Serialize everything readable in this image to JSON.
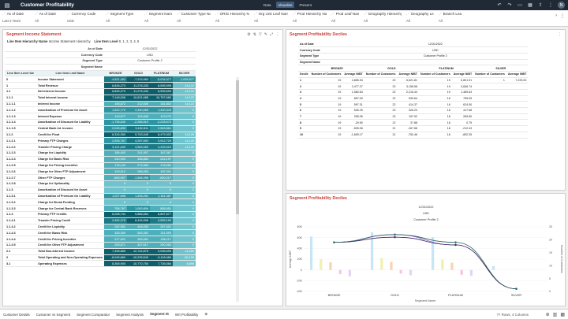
{
  "app": {
    "title": "Customer Profitability",
    "modes": [
      "Data",
      "Visualize",
      "Present"
    ],
    "active_mode": "Visualize",
    "avatar": "N"
  },
  "filters": [
    {
      "label": "As of Date",
      "value": "Last 2 Years"
    },
    {
      "label": "As of Date",
      "value": "All"
    },
    {
      "label": "Currency Code",
      "value": "USD"
    },
    {
      "label": "Segment Type",
      "value": "All"
    },
    {
      "label": "Segment Name",
      "value": "All"
    },
    {
      "label": "Customer Type Name",
      "value": "All"
    },
    {
      "label": "ORIG Hierarchy Name",
      "value": "All"
    },
    {
      "label": "Org Unit Leaf Name",
      "value": "All"
    },
    {
      "label": "Prod Hierarchy Name",
      "value": "All"
    },
    {
      "label": "Prod Leaf Name",
      "value": "All"
    },
    {
      "label": "Geography Hierarchy Name",
      "value": "All"
    },
    {
      "label": "Geography Leaf Name",
      "value": "All"
    },
    {
      "label": "Branch Lea",
      "value": "All"
    }
  ],
  "income_statement": {
    "title": "Segment Income Statement",
    "hier_label": "Line Item Hierarchy Name",
    "hier_value": "Income Statement Hierarchy",
    "level_label": "Line Item Level",
    "level_value": "0, 1, 2, 3, 4, 5",
    "header_labels": [
      "As of Date",
      "Currency Code",
      "Segment Type",
      "Segment Name"
    ],
    "header_values": [
      "12/31/2022",
      "USD",
      "Customer Profile 2",
      ""
    ],
    "col_id": "Line Item Level Ide",
    "col_name": "Line Item Leaf Name",
    "col_segments": [
      "BRONZE",
      "GOLD",
      "PLATINUM",
      "SILVER"
    ],
    "rows": [
      {
        "id": "0",
        "name": "Income Statement",
        "v": [
          "-4,521,452",
          "-7,215,963",
          "-5,034,577",
          "-1,039,577"
        ]
      },
      {
        "id": "1",
        "name": "Total Revenue",
        "v": [
          "6,826,273",
          "11,276,333",
          "8,595,599",
          "14,122"
        ]
      },
      {
        "id": "1.1",
        "name": "Net Interest Income",
        "v": [
          "6,826,273",
          "11,276,333",
          "8,595,599",
          "14,122"
        ]
      },
      {
        "id": "1.1.1",
        "name": "Total Interest Income",
        "v": [
          "7,148,008",
          "10,621,085",
          "10,757,680",
          "14,122"
        ]
      },
      {
        "id": "1.1.1.1",
        "name": "Interest Income",
        "v": "155,872|212,605|181,802|14,122"
      },
      {
        "id": "1.1.1.2",
        "name": "Amortization of Premium for Asset",
        "v": "1,622,779|2,490,559|1,430,343|0"
      },
      {
        "id": "1.1.1.3",
        "name": "Interest Expense",
        "v": "113,977|129,408|113,275|0"
      },
      {
        "id": "1.1.1.4",
        "name": "Amortization of Discount for Liability",
        "v": "-1,736,849|-2,286,519|-2,228,573|0"
      },
      {
        "id": "1.1.1.5",
        "name": "Central Bank Int. Income",
        "v": "2,045,830|3,152,611|2,545,861|0"
      },
      {
        "id": "1.1.2",
        "name": "Credit for Float",
        "v": "6,316,950|9,743,449|8,479,302|14,125"
      },
      {
        "id": "1.1.2.1",
        "name": "Primary FTP Charges",
        "v": "2,926,767|4,267,692|3,912,729|14,125"
      },
      {
        "id": "1.1.2.2",
        "name": "Transfer Pricing Charge",
        "v": "3,121,633|4,583,352|4,433,319|14,125"
      },
      {
        "id": "1.1.2.3",
        "name": "Charge for Liquidity",
        "v": "156,403|241,907|167,367|0"
      },
      {
        "id": "1.1.2.4",
        "name": "Charge for Basis Risk",
        "v": "240,903|346,883|244,197|0"
      },
      {
        "id": "1.1.2.5",
        "name": "Charge for Pricing Incentive",
        "v": "176,142|274,983|176,262|0"
      },
      {
        "id": "1.1.2.6",
        "name": "Charge for Other FTP Adjustment",
        "v": "193,013|286,053|187,201|0"
      },
      {
        "id": "1.1.2.7",
        "name": "Other FTP Charges",
        "v": "-663,907|-1,566,398|-600,217|0"
      },
      {
        "id": "1.1.2.8",
        "name": "Charge for Optionality",
        "v": "0|0|0|0"
      },
      {
        "id": "1.1.3",
        "name": "Amortization of Discount for Asset",
        "v": "0|0|0|0"
      },
      {
        "id": "1.1.3.1",
        "name": "Amortization of Premium for Liability",
        "v": "1,027,698|1,406,251|1,181,387|0"
      },
      {
        "id": "1.1.3.2",
        "name": "Charge for Break Funding",
        "v": "0|0|0|0"
      },
      {
        "id": "1.1.3.3",
        "name": "Charge for Central Bank Reserves",
        "v": "756,767|1,063,806|856,951|0"
      },
      {
        "id": "1.1.4",
        "name": "Primary FTP Credits",
        "v": "6,008,744|9,886,554|8,897,577|0"
      },
      {
        "id": "1.1.4.1",
        "name": "Transfer Pricing Credit",
        "v": "3,454,378|6,434,598|4,555,190|0"
      },
      {
        "id": "1.1.4.2",
        "name": "Credit for Liquidity",
        "v": "262,962|446,093|297,401|0"
      },
      {
        "id": "1.1.4.3",
        "name": "Credit for Basis Risk",
        "v": "326,359|545,361|311,593|0"
      },
      {
        "id": "1.1.4.4",
        "name": "Credit for Pricing Incentive",
        "v": "217,601|363,081|256,117|0"
      },
      {
        "id": "1.1.4.5",
        "name": "Credit for Other FTP Adjustment",
        "v": "283,871|447,617|290,963|0"
      },
      {
        "id": "2.1",
        "name": "Total Non-Interest Income",
        "v": "7,498,865|12,744,875|9,098,599|14,269"
      },
      {
        "id": "2",
        "name": "Total Operating and Non-Operating Expenses",
        "v": "-8,045,860|-10,225,540|-9,118,469|-50,199"
      },
      {
        "id": "3.1",
        "name": "Operating Expenses",
        "v": "8,306,900|10,770,750|7,726,084|8,898"
      }
    ]
  },
  "deciles": {
    "title": "Segment Profitability Deciles",
    "header_labels": [
      "As of Date",
      "Currency Code",
      "Segment Type",
      "Segment Name"
    ],
    "header_values": [
      "12/31/2022",
      "USD",
      "Customer Profile 2",
      ""
    ],
    "segments": [
      "BRONZE",
      "GOLD",
      "PLATINUM",
      "SILVER"
    ],
    "col_decile": "Decile",
    "col_count": "Number of Customers",
    "col_avg": "Average NIBT",
    "rows": [
      {
        "d": "1",
        "v": "19|4,885.54|22|6,621.81|19|6,801.91|1|7,225.00"
      },
      {
        "d": "2",
        "v": "19|2,477.27|22|3,158.58|19|3,846.74||"
      },
      {
        "d": "3",
        "v": "19|1,580.84|22|2,216.43|19|1,489.63||"
      },
      {
        "d": "4",
        "v": "19|857.09|22|539.64|18|795.05||"
      },
      {
        "d": "5",
        "v": "19|597.31|22|414.37|18|624.50||"
      },
      {
        "d": "6",
        "v": "19|526.25|22|326.23|18|417.68||"
      },
      {
        "d": "7",
        "v": "19|255.05|22|157.92|18|269.80||"
      },
      {
        "d": "8",
        "v": "19|-29.50|22|37.88|18|0.79||"
      },
      {
        "d": "9",
        "v": "19|-505.06|21|-167.68|18|-212.43||"
      },
      {
        "d": "10",
        "v": "19|-1,659.17|21|-750.46|18|-892.25||"
      }
    ]
  },
  "chart": {
    "title": "Segment Profitability Deciles",
    "header_values": [
      "12/31/2022",
      "USD",
      "Customer Profile 2"
    ],
    "xlabel": "Segment Name",
    "ylabel_left": "Average NIBT",
    "ylabel_right": "Number of Customers"
  },
  "chart_data": {
    "type": "bar",
    "categories": [
      "BRONZE",
      "GOLD",
      "PLATINUM",
      "SILVER"
    ],
    "ylim": [
      -40000,
      80000
    ],
    "y2lim": [
      0,
      25
    ],
    "yticks": [
      "80K",
      "60K",
      "40K",
      "20K",
      "0",
      "-20K",
      "-40K"
    ],
    "y2ticks": [
      "25",
      "20",
      "15",
      "10",
      "5",
      "0"
    ],
    "bar_series": [
      {
        "color": "#c6e6f5",
        "values": [
          62000,
          70000,
          61000,
          7000
        ]
      },
      {
        "color": "#f1efb0",
        "values": [
          20000,
          22000,
          19000,
          0
        ]
      },
      {
        "color": "#f9d3b0",
        "values": [
          14000,
          15000,
          13500,
          0
        ]
      },
      {
        "color": "#f5c6e0",
        "values": [
          -8000,
          -7000,
          -9000,
          0
        ]
      },
      {
        "color": "#e3d4f5",
        "values": [
          -12000,
          -10000,
          -11000,
          0
        ]
      }
    ],
    "line_series": [
      {
        "color": "#8a6a2a",
        "values": [
          19,
          22,
          19,
          1
        ]
      },
      {
        "color": "#7b4ac8",
        "values": [
          19,
          22,
          18,
          1
        ]
      },
      {
        "color": "#c43a8a",
        "values": [
          19,
          21,
          18,
          1
        ]
      },
      {
        "color": "#2b2b6b",
        "values": [
          19,
          21,
          18,
          1
        ]
      },
      {
        "color": "#1f6a6a",
        "values": [
          19,
          22,
          19,
          1
        ]
      }
    ]
  },
  "tabs": [
    "Customer Details",
    "Customer vs Segment",
    "Segment Comparator",
    "Segment Analysis",
    "Segment IS",
    "Wrt Profitability"
  ],
  "active_tab": "Segment IS",
  "status": "?? Rows, 4 Columns"
}
